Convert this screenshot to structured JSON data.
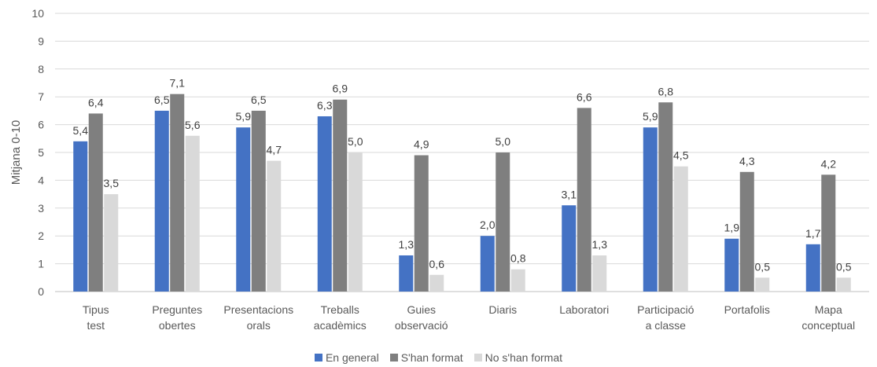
{
  "chart_data": {
    "type": "bar",
    "ylabel": "Mitjana 0-10",
    "xlabel": "",
    "ylim": [
      0,
      10
    ],
    "yticks": [
      "0",
      "1",
      "2",
      "3",
      "4",
      "5",
      "6",
      "7",
      "8",
      "9",
      "10"
    ],
    "grid": true,
    "legend_position": "bottom",
    "categories": [
      [
        "Tipus",
        "test"
      ],
      [
        "Preguntes",
        "obertes"
      ],
      [
        "Presentacions",
        "orals"
      ],
      [
        "Treballs",
        "acadèmics"
      ],
      [
        "Guies",
        "observació"
      ],
      [
        "Diaris"
      ],
      [
        "Laboratori"
      ],
      [
        "Participació",
        "a classe"
      ],
      [
        "Portafolis"
      ],
      [
        "Mapa",
        "conceptual"
      ]
    ],
    "series": [
      {
        "name": "En general",
        "color": "#4472C4",
        "values": [
          5.4,
          6.5,
          5.9,
          6.3,
          1.3,
          2.0,
          3.1,
          5.9,
          1.9,
          1.7
        ],
        "labels": [
          "5,4",
          "6,5",
          "5,9",
          "6,3",
          "1,3",
          "2,0",
          "3,1",
          "5,9",
          "1,9",
          "1,7"
        ]
      },
      {
        "name": "S'han format",
        "color": "#7F7F7F",
        "values": [
          6.4,
          7.1,
          6.5,
          6.9,
          4.9,
          5.0,
          6.6,
          6.8,
          4.3,
          4.2
        ],
        "labels": [
          "6,4",
          "7,1",
          "6,5",
          "6,9",
          "4,9",
          "5,0",
          "6,6",
          "6,8",
          "4,3",
          "4,2"
        ]
      },
      {
        "name": "No s'han format",
        "color": "#D9D9D9",
        "values": [
          3.5,
          5.6,
          4.7,
          5.0,
          0.6,
          0.8,
          1.3,
          4.5,
          0.5,
          0.5
        ],
        "labels": [
          "3,5",
          "5,6",
          "4,7",
          "5,0",
          "0,6",
          "0,8",
          "1,3",
          "4,5",
          "0,5",
          "0,5"
        ]
      }
    ]
  }
}
